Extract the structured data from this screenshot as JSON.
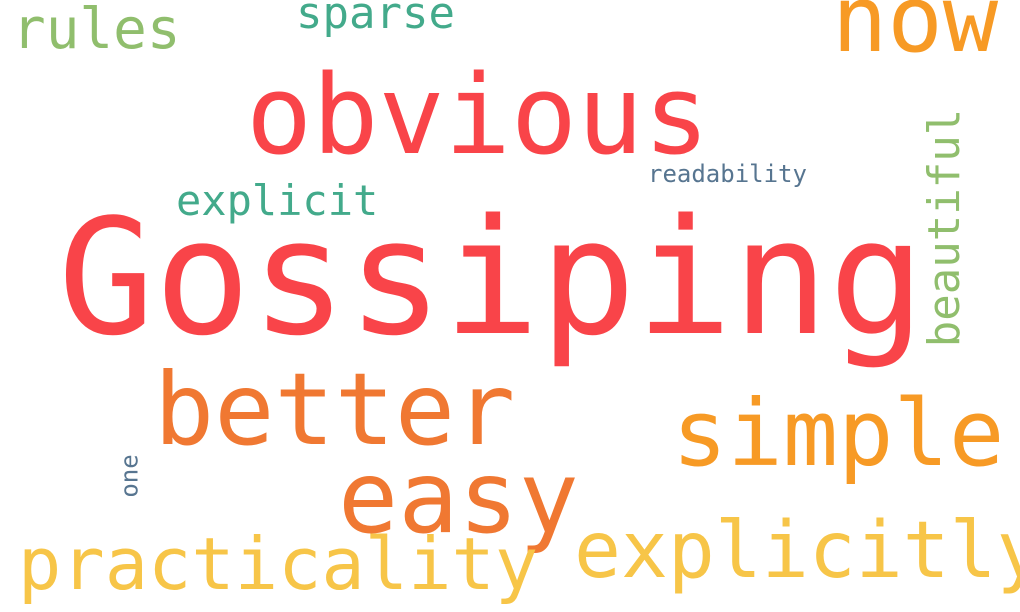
{
  "words": {
    "gossiping": {
      "text": "Gossiping",
      "color": "#f94449"
    },
    "obvious": {
      "text": "obvious",
      "color": "#f94449"
    },
    "now": {
      "text": "now",
      "color": "#f79a25"
    },
    "better": {
      "text": "better",
      "color": "#f07832"
    },
    "easy": {
      "text": "easy",
      "color": "#f07832"
    },
    "simple": {
      "text": "simple",
      "color": "#f79a25"
    },
    "explicitly": {
      "text": "explicitly",
      "color": "#f7c548"
    },
    "practicality": {
      "text": "practicality",
      "color": "#f7c548"
    },
    "rules": {
      "text": "rules",
      "color": "#90be6d"
    },
    "sparse": {
      "text": "sparse",
      "color": "#43aa8b"
    },
    "explicit": {
      "text": "explicit",
      "color": "#43aa8b"
    },
    "readability": {
      "text": "readability",
      "color": "#577590"
    },
    "beautiful": {
      "text": "beautiful",
      "color": "#90be6d",
      "orientation": "vertical"
    },
    "one": {
      "text": "one",
      "color": "#577590",
      "orientation": "vertical"
    }
  }
}
